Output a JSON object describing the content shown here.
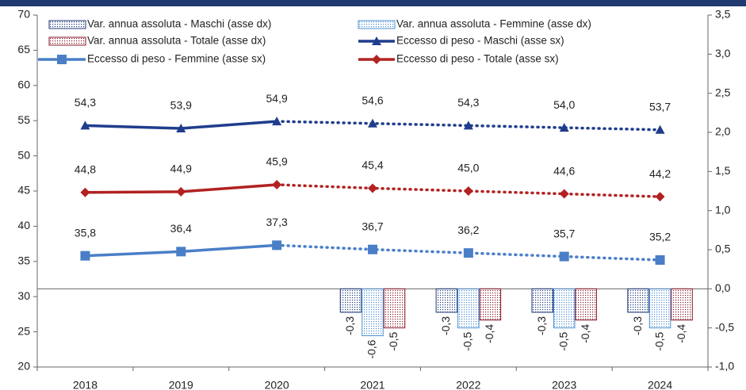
{
  "chart_data": {
    "type": "combo",
    "categories": [
      "2018",
      "2019",
      "2020",
      "2021",
      "2022",
      "2023",
      "2024"
    ],
    "dotted_after": "2020",
    "ylim": [
      20,
      70
    ],
    "yticks": [
      20,
      25,
      30,
      35,
      40,
      45,
      50,
      55,
      60,
      65,
      70
    ],
    "y2lim": [
      -1.0,
      3.5
    ],
    "y2ticks": [
      {
        "value": -1.0,
        "label": "-1,0"
      },
      {
        "value": -0.5,
        "label": "-0,5"
      },
      {
        "value": 0.0,
        "label": "0,0"
      },
      {
        "value": 0.5,
        "label": "0,5"
      },
      {
        "value": 1.0,
        "label": "1,0"
      },
      {
        "value": 1.5,
        "label": "1,5"
      },
      {
        "value": 2.0,
        "label": "2,0"
      },
      {
        "value": 2.5,
        "label": "2,5"
      },
      {
        "value": 3.0,
        "label": "3,0"
      },
      {
        "value": 3.5,
        "label": "3,5"
      }
    ],
    "series": [
      {
        "name": "Var. annua assoluta - Maschi (asse dx)",
        "kind": "bar",
        "axis": "y2",
        "color": "#1f3a7a",
        "values": [
          null,
          null,
          null,
          -0.3,
          -0.3,
          -0.3,
          -0.3
        ],
        "value_labels": [
          null,
          null,
          null,
          "-0,3",
          "-0,3",
          "-0,3",
          "-0,3"
        ]
      },
      {
        "name": "Var. annua assoluta - Femmine (asse dx)",
        "kind": "bar",
        "axis": "y2",
        "color": "#4a8fd0",
        "values": [
          null,
          null,
          null,
          -0.6,
          -0.5,
          -0.5,
          -0.5
        ],
        "value_labels": [
          null,
          null,
          null,
          "-0,6",
          "-0,5",
          "-0,5",
          "-0,5"
        ]
      },
      {
        "name": "Var. annua assoluta - Totale (asse dx)",
        "kind": "bar",
        "axis": "y2",
        "color": "#8b1a2b",
        "values": [
          null,
          null,
          null,
          -0.5,
          -0.4,
          -0.4,
          -0.4
        ],
        "value_labels": [
          null,
          null,
          null,
          "-0,5",
          "-0,4",
          "-0,4",
          "-0,4"
        ]
      },
      {
        "name": "Eccesso di peso - Maschi (asse sx)",
        "kind": "line",
        "marker": "triangle",
        "color": "#1f3d8c",
        "values": [
          54.3,
          53.9,
          54.9,
          54.6,
          54.3,
          54.0,
          53.7
        ],
        "value_labels": [
          "54,3",
          "53,9",
          "54,9",
          "54,6",
          "54,3",
          "54,0",
          "53,7"
        ]
      },
      {
        "name": "Eccesso di peso - Femmine (asse sx)",
        "kind": "line",
        "marker": "square",
        "color": "#4a7fc7",
        "values": [
          35.8,
          36.4,
          37.3,
          36.7,
          36.2,
          35.7,
          35.2
        ],
        "value_labels": [
          "35,8",
          "36,4",
          "37,3",
          "36,7",
          "36,2",
          "35,7",
          "35,2"
        ]
      },
      {
        "name": "Eccesso di peso - Totale (asse sx)",
        "kind": "line",
        "marker": "diamond",
        "color": "#b22222",
        "values": [
          44.8,
          44.9,
          45.9,
          45.4,
          45.0,
          44.6,
          44.2
        ],
        "value_labels": [
          "44,8",
          "44,9",
          "45,9",
          "45,4",
          "45,0",
          "44,6",
          "44,2"
        ]
      }
    ]
  }
}
